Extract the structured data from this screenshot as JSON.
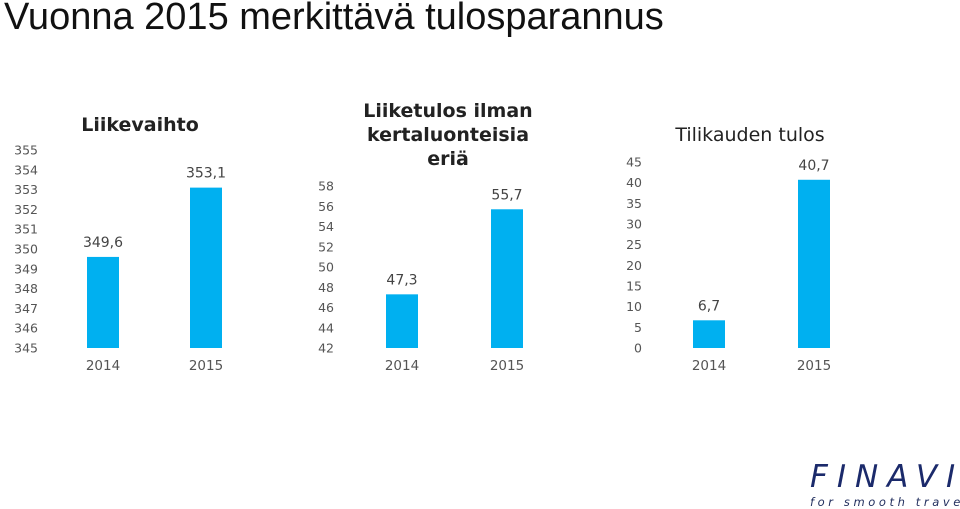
{
  "slide_title": "Vuonna 2015 merkittävä tulosparannus",
  "accent_color": "#00b0f0",
  "logo": {
    "word": "FINAVIA",
    "tagline": "for smooth travelling"
  },
  "chart_data": [
    {
      "type": "bar",
      "title_lines": [
        "Liikevaihto"
      ],
      "categories": [
        "2014",
        "2015"
      ],
      "values": [
        349.6,
        353.1
      ],
      "value_labels": [
        "349,6",
        "353,1"
      ],
      "ylim": [
        345,
        355
      ],
      "yticks": [
        "345",
        "346",
        "347",
        "348",
        "349",
        "350",
        "351",
        "352",
        "353",
        "354",
        "355"
      ],
      "grid": false,
      "legend": "none"
    },
    {
      "type": "bar",
      "title_lines": [
        "Liiketulos ilman",
        "kertaluonteisia",
        "eriä"
      ],
      "categories": [
        "2014",
        "2015"
      ],
      "values": [
        47.3,
        55.7
      ],
      "value_labels": [
        "47,3",
        "55,7"
      ],
      "ylim": [
        42,
        58
      ],
      "yticks": [
        "42",
        "44",
        "46",
        "48",
        "50",
        "52",
        "54",
        "56",
        "58"
      ],
      "grid": false,
      "legend": "none"
    },
    {
      "type": "bar",
      "title_lines": [
        "Tilikauden tulos"
      ],
      "categories": [
        "2014",
        "2015"
      ],
      "values": [
        6.7,
        40.7
      ],
      "value_labels": [
        "6,7",
        "40,7"
      ],
      "ylim": [
        0,
        45
      ],
      "yticks": [
        "0",
        "5",
        "10",
        "15",
        "20",
        "25",
        "30",
        "35",
        "40",
        "45"
      ],
      "grid": false,
      "legend": "none"
    }
  ]
}
